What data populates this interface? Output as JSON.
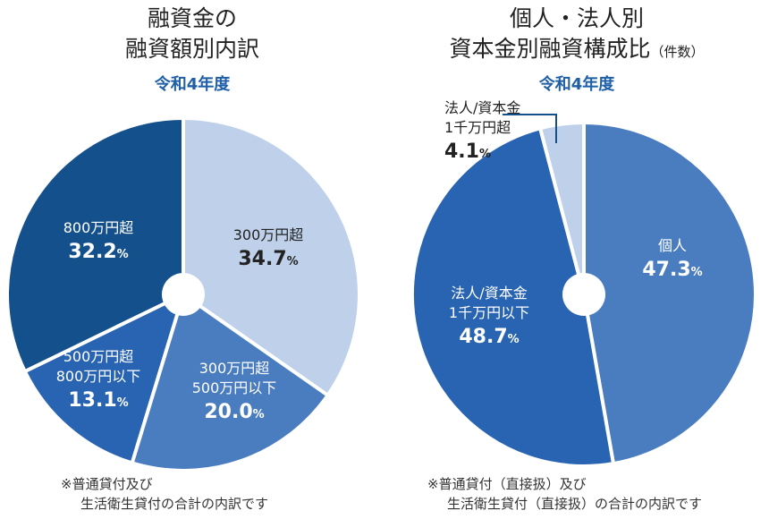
{
  "chart_data": [
    {
      "type": "pie",
      "title_lines": [
        "融資金の",
        "融資額別内訳"
      ],
      "subtitle": "令和4年度",
      "slices": [
        {
          "label_lines": [
            "300万円超"
          ],
          "value": 34.7,
          "value_text": "34.7",
          "unit": "%",
          "color": "#bfd1ea",
          "text_color": "#222222"
        },
        {
          "label_lines": [
            "300万円超",
            "500万円以下"
          ],
          "value": 20.0,
          "value_text": "20.0",
          "unit": "%",
          "color": "#4a7cc0",
          "text_color": "#ffffff"
        },
        {
          "label_lines": [
            "500万円超",
            "800万円以下"
          ],
          "value": 13.1,
          "value_text": "13.1",
          "unit": "%",
          "color": "#2864b1",
          "text_color": "#ffffff"
        },
        {
          "label_lines": [
            "800万円超"
          ],
          "value": 32.2,
          "value_text": "32.2",
          "unit": "%",
          "color": "#14508c",
          "text_color": "#ffffff"
        }
      ],
      "note_lines": [
        "※普通貸付及び",
        "生活衛生貸付の合計の内訳です"
      ]
    },
    {
      "type": "pie",
      "title_lines": [
        "個人・法人別",
        "資本金別融資構成比"
      ],
      "title_suffix": "（件数）",
      "subtitle": "令和4年度",
      "slices": [
        {
          "label_lines": [
            "個人"
          ],
          "value": 47.3,
          "value_text": "47.3",
          "unit": "%",
          "color": "#4a7cc0",
          "text_color": "#ffffff"
        },
        {
          "label_lines": [
            "法人/資本金",
            "1千万円以下"
          ],
          "value": 48.7,
          "value_text": "48.7",
          "unit": "%",
          "color": "#2864b1",
          "text_color": "#ffffff"
        },
        {
          "label_lines": [
            "法人/資本金",
            "1千万円超"
          ],
          "value": 4.1,
          "value_text": "4.1",
          "unit": "%",
          "color": "#bfd1ea",
          "text_color": "#222222"
        }
      ],
      "note_lines": [
        "※普通貸付（直接扱）及び",
        "生活衛生貸付（直接扱）の合計の内訳です"
      ]
    }
  ]
}
